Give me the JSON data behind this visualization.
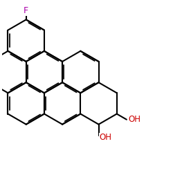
{
  "bg_color": "#ffffff",
  "bond_color": "#000000",
  "F_color": "#aa00aa",
  "OH_color": "#cc0000",
  "lw": 1.5,
  "dbo": 0.07,
  "xlim": [
    0.0,
    10.5
  ],
  "ylim": [
    -0.8,
    9.5
  ],
  "figsize": [
    2.5,
    2.5
  ],
  "dpi": 100
}
